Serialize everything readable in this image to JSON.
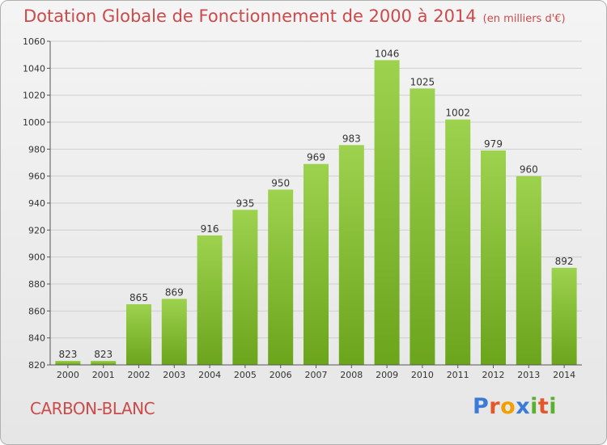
{
  "header": {
    "title": "Dotation Globale de Fonctionnement de 2000 à 2014",
    "unit": "(en milliers d'€)"
  },
  "city": "CARBON-BLANC",
  "logo": {
    "text": "Proxiti"
  },
  "colors": {
    "bar_top": "#9dd24e",
    "bar_bottom": "#6ba51c",
    "grid": "#cfcfcf",
    "title": "#cc4a4a"
  },
  "chart_data": {
    "type": "bar",
    "title": "Dotation Globale de Fonctionnement de 2000 à 2014",
    "xlabel": "",
    "ylabel": "",
    "ylim": [
      820,
      1060
    ],
    "yticks": [
      820,
      840,
      860,
      880,
      900,
      920,
      940,
      960,
      980,
      1000,
      1020,
      1040,
      1060
    ],
    "grid": true,
    "categories": [
      "2000",
      "2001",
      "2002",
      "2003",
      "2004",
      "2005",
      "2006",
      "2007",
      "2008",
      "2009",
      "2010",
      "2011",
      "2012",
      "2013",
      "2014"
    ],
    "values": [
      823,
      823,
      865,
      869,
      916,
      935,
      950,
      969,
      983,
      1046,
      1025,
      1002,
      979,
      960,
      892
    ]
  }
}
